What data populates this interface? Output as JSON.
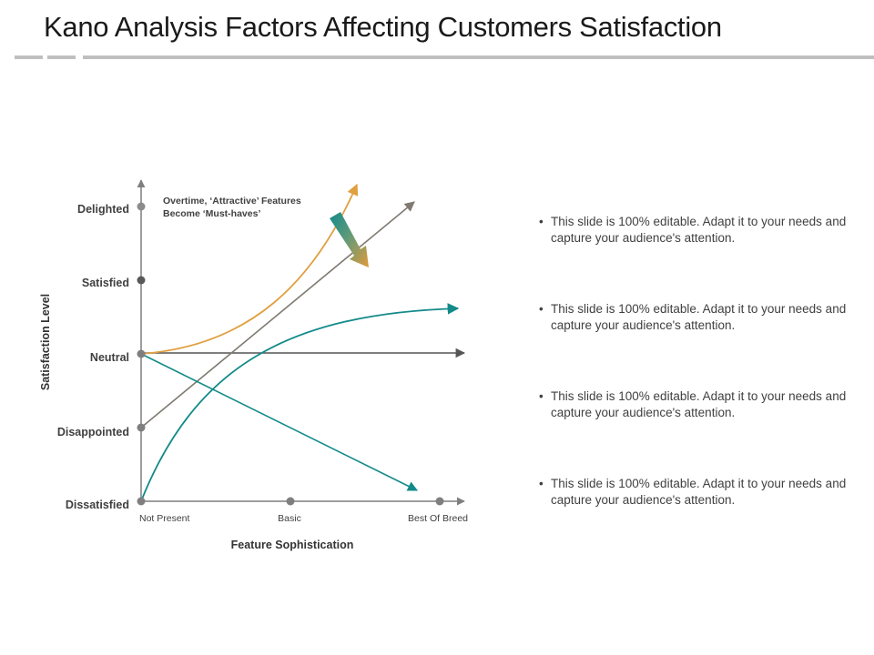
{
  "title": "Kano Analysis Factors Affecting Customers Satisfaction",
  "diagram": {
    "y_axis_title": "Satisfaction Level",
    "x_axis_title": "Feature Sophistication",
    "y_levels": [
      "Dissatisfied",
      "Disappointed",
      "Neutral",
      "Satisfied",
      "Delighted"
    ],
    "x_levels": [
      "Not Present",
      "Basic",
      "Best Of Breed"
    ],
    "annotation": {
      "line1": "Overtime, ‘Attractive’ Features",
      "line2": "Become ‘Must-haves’"
    },
    "colors": {
      "attractive": "#e0a040",
      "performance": "#7f7a72",
      "must_be": "#138a8a",
      "indifferent": "#555555",
      "axis": "#7f7f7f"
    }
  },
  "bullets": {
    "marker": "•",
    "items": [
      "This slide is 100% editable. Adapt it to your needs and capture your audience's attention.",
      "This slide is 100% editable. Adapt it to your needs and capture your audience's attention.",
      "This slide is 100% editable. Adapt it to your needs and capture your audience's attention.",
      "This slide is 100% editable. Adapt it to your needs and capture your audience's attention."
    ]
  }
}
